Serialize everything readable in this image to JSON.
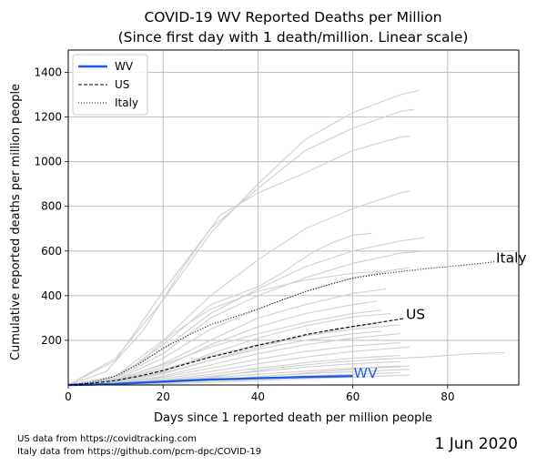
{
  "chart_data": {
    "type": "line",
    "title_line1": "COVID-19 WV Reported Deaths per Million",
    "title_line2": "(Since first day with 1 death/million. Linear scale)",
    "xlabel": "Days since 1 reported death per million people",
    "ylabel": "Cumulative reported deaths per million people",
    "xlim": [
      0,
      95
    ],
    "ylim": [
      0,
      1500
    ],
    "x_ticks": [
      0,
      20,
      40,
      60,
      80
    ],
    "y_ticks": [
      200,
      400,
      600,
      800,
      1000,
      1200,
      1400
    ],
    "grid": true,
    "legend_position": "top-left",
    "series": [
      {
        "name": "WV",
        "style": "solid",
        "color": "#1a5ce6",
        "end_label": "WV",
        "points": [
          [
            0,
            0
          ],
          [
            5,
            2
          ],
          [
            10,
            5
          ],
          [
            15,
            10
          ],
          [
            20,
            15
          ],
          [
            25,
            20
          ],
          [
            30,
            25
          ],
          [
            35,
            27
          ],
          [
            40,
            30
          ],
          [
            45,
            33
          ],
          [
            50,
            36
          ],
          [
            55,
            38
          ],
          [
            60,
            40
          ]
        ]
      },
      {
        "name": "US",
        "style": "dashed",
        "color": "#000000",
        "end_label": "US",
        "points": [
          [
            0,
            0
          ],
          [
            5,
            8
          ],
          [
            10,
            20
          ],
          [
            15,
            40
          ],
          [
            20,
            65
          ],
          [
            25,
            95
          ],
          [
            30,
            125
          ],
          [
            35,
            150
          ],
          [
            40,
            178
          ],
          [
            45,
            200
          ],
          [
            50,
            225
          ],
          [
            55,
            245
          ],
          [
            60,
            262
          ],
          [
            65,
            278
          ],
          [
            70,
            295
          ],
          [
            71,
            300
          ]
        ]
      },
      {
        "name": "Italy",
        "style": "dotted",
        "color": "#000000",
        "end_label": "Italy",
        "points": [
          [
            0,
            0
          ],
          [
            5,
            12
          ],
          [
            10,
            40
          ],
          [
            15,
            95
          ],
          [
            20,
            165
          ],
          [
            25,
            220
          ],
          [
            30,
            270
          ],
          [
            35,
            305
          ],
          [
            40,
            340
          ],
          [
            45,
            380
          ],
          [
            50,
            418
          ],
          [
            55,
            450
          ],
          [
            60,
            478
          ],
          [
            65,
            495
          ],
          [
            70,
            508
          ],
          [
            75,
            520
          ],
          [
            80,
            530
          ],
          [
            85,
            540
          ],
          [
            90,
            552
          ]
        ]
      }
    ],
    "background_series_color": "#d0d0d0",
    "background_series": [
      [
        [
          0,
          0
        ],
        [
          10,
          120
        ],
        [
          20,
          380
        ],
        [
          30,
          680
        ],
        [
          40,
          900
        ],
        [
          50,
          1100
        ],
        [
          60,
          1220
        ],
        [
          70,
          1300
        ],
        [
          74,
          1320
        ]
      ],
      [
        [
          0,
          0
        ],
        [
          10,
          110
        ],
        [
          20,
          420
        ],
        [
          30,
          700
        ],
        [
          40,
          880
        ],
        [
          50,
          1050
        ],
        [
          60,
          1150
        ],
        [
          70,
          1225
        ],
        [
          73,
          1235
        ]
      ],
      [
        [
          0,
          0
        ],
        [
          8,
          60
        ],
        [
          16,
          250
        ],
        [
          24,
          520
        ],
        [
          32,
          760
        ],
        [
          40,
          860
        ],
        [
          50,
          950
        ],
        [
          60,
          1050
        ],
        [
          70,
          1110
        ],
        [
          72,
          1115
        ]
      ],
      [
        [
          0,
          0
        ],
        [
          10,
          40
        ],
        [
          20,
          200
        ],
        [
          30,
          400
        ],
        [
          40,
          560
        ],
        [
          50,
          700
        ],
        [
          60,
          790
        ],
        [
          70,
          860
        ],
        [
          72,
          870
        ]
      ],
      [
        [
          0,
          0
        ],
        [
          10,
          30
        ],
        [
          20,
          180
        ],
        [
          30,
          360
        ],
        [
          40,
          440
        ],
        [
          45,
          500
        ],
        [
          48,
          545
        ],
        [
          52,
          600
        ],
        [
          56,
          640
        ],
        [
          60,
          670
        ],
        [
          64,
          680
        ]
      ],
      [
        [
          0,
          0
        ],
        [
          10,
          40
        ],
        [
          20,
          160
        ],
        [
          30,
          320
        ],
        [
          40,
          430
        ],
        [
          50,
          530
        ],
        [
          60,
          600
        ],
        [
          70,
          645
        ],
        [
          75,
          660
        ]
      ],
      [
        [
          0,
          0
        ],
        [
          10,
          30
        ],
        [
          20,
          140
        ],
        [
          30,
          300
        ],
        [
          40,
          400
        ],
        [
          50,
          480
        ],
        [
          60,
          545
        ],
        [
          70,
          590
        ],
        [
          75,
          600
        ]
      ],
      [
        [
          0,
          0
        ],
        [
          10,
          25
        ],
        [
          20,
          120
        ],
        [
          30,
          250
        ],
        [
          40,
          340
        ],
        [
          50,
          420
        ],
        [
          60,
          480
        ],
        [
          70,
          520
        ],
        [
          72,
          525
        ]
      ],
      [
        [
          0,
          0
        ],
        [
          10,
          20
        ],
        [
          20,
          95
        ],
        [
          30,
          200
        ],
        [
          40,
          300
        ],
        [
          50,
          360
        ],
        [
          60,
          410
        ],
        [
          67,
          430
        ]
      ],
      [
        [
          0,
          0
        ],
        [
          10,
          18
        ],
        [
          20,
          80
        ],
        [
          30,
          180
        ],
        [
          40,
          260
        ],
        [
          50,
          320
        ],
        [
          60,
          360
        ],
        [
          65,
          375
        ]
      ],
      [
        [
          0,
          0
        ],
        [
          10,
          15
        ],
        [
          20,
          60
        ],
        [
          30,
          140
        ],
        [
          40,
          210
        ],
        [
          50,
          265
        ],
        [
          60,
          305
        ],
        [
          68,
          320
        ]
      ],
      [
        [
          0,
          0
        ],
        [
          10,
          12
        ],
        [
          20,
          50
        ],
        [
          30,
          110
        ],
        [
          40,
          170
        ],
        [
          50,
          220
        ],
        [
          60,
          260
        ],
        [
          65,
          275
        ]
      ],
      [
        [
          0,
          0
        ],
        [
          10,
          10
        ],
        [
          20,
          40
        ],
        [
          30,
          90
        ],
        [
          40,
          140
        ],
        [
          50,
          180
        ],
        [
          60,
          210
        ],
        [
          70,
          230
        ]
      ],
      [
        [
          0,
          0
        ],
        [
          10,
          8
        ],
        [
          20,
          35
        ],
        [
          30,
          75
        ],
        [
          40,
          115
        ],
        [
          50,
          150
        ],
        [
          60,
          175
        ],
        [
          70,
          190
        ]
      ],
      [
        [
          0,
          0
        ],
        [
          10,
          6
        ],
        [
          20,
          28
        ],
        [
          30,
          60
        ],
        [
          40,
          95
        ],
        [
          50,
          125
        ],
        [
          60,
          150
        ],
        [
          72,
          170
        ]
      ],
      [
        [
          0,
          0
        ],
        [
          10,
          5
        ],
        [
          20,
          22
        ],
        [
          30,
          48
        ],
        [
          40,
          75
        ],
        [
          50,
          100
        ],
        [
          60,
          120
        ],
        [
          70,
          132
        ]
      ],
      [
        [
          0,
          0
        ],
        [
          10,
          4
        ],
        [
          20,
          18
        ],
        [
          30,
          40
        ],
        [
          40,
          60
        ],
        [
          50,
          80
        ],
        [
          60,
          95
        ],
        [
          70,
          105
        ]
      ],
      [
        [
          0,
          0
        ],
        [
          10,
          3
        ],
        [
          20,
          15
        ],
        [
          30,
          32
        ],
        [
          40,
          48
        ],
        [
          50,
          62
        ],
        [
          60,
          75
        ],
        [
          70,
          85
        ]
      ],
      [
        [
          0,
          0
        ],
        [
          10,
          3
        ],
        [
          20,
          12
        ],
        [
          30,
          25
        ],
        [
          40,
          38
        ],
        [
          50,
          50
        ],
        [
          60,
          60
        ],
        [
          72,
          70
        ]
      ],
      [
        [
          0,
          0
        ],
        [
          10,
          2
        ],
        [
          20,
          10
        ],
        [
          30,
          20
        ],
        [
          40,
          30
        ],
        [
          50,
          40
        ],
        [
          60,
          48
        ],
        [
          70,
          55
        ]
      ],
      [
        [
          0,
          0
        ],
        [
          15,
          5
        ],
        [
          25,
          20
        ],
        [
          35,
          50
        ],
        [
          45,
          80
        ],
        [
          55,
          100
        ],
        [
          65,
          115
        ],
        [
          75,
          125
        ],
        [
          85,
          140
        ],
        [
          92,
          145
        ]
      ],
      [
        [
          0,
          0
        ],
        [
          15,
          4
        ],
        [
          30,
          20
        ],
        [
          45,
          45
        ],
        [
          60,
          70
        ],
        [
          72,
          85
        ]
      ],
      [
        [
          0,
          0
        ],
        [
          20,
          5
        ],
        [
          40,
          20
        ],
        [
          60,
          35
        ],
        [
          72,
          45
        ]
      ],
      [
        [
          0,
          0
        ],
        [
          10,
          20
        ],
        [
          20,
          70
        ],
        [
          30,
          130
        ],
        [
          40,
          180
        ],
        [
          50,
          220
        ],
        [
          60,
          250
        ],
        [
          70,
          270
        ]
      ],
      [
        [
          0,
          0
        ],
        [
          10,
          15
        ],
        [
          20,
          55
        ],
        [
          30,
          110
        ],
        [
          40,
          160
        ],
        [
          50,
          200
        ],
        [
          60,
          230
        ],
        [
          66,
          240
        ]
      ],
      [
        [
          0,
          0
        ],
        [
          10,
          25
        ],
        [
          20,
          90
        ],
        [
          30,
          170
        ],
        [
          40,
          230
        ],
        [
          50,
          280
        ],
        [
          60,
          320
        ],
        [
          66,
          335
        ]
      ],
      [
        [
          0,
          0
        ],
        [
          8,
          20
        ],
        [
          15,
          100
        ],
        [
          22,
          230
        ],
        [
          30,
          340
        ],
        [
          40,
          420
        ],
        [
          50,
          470
        ],
        [
          60,
          500
        ],
        [
          66,
          510
        ]
      ]
    ]
  },
  "footer": {
    "source_us": "US data from https://covidtracking.com",
    "source_italy": "Italy data from https://github.com/pcm-dpc/COVID-19",
    "date": "1 Jun 2020"
  }
}
